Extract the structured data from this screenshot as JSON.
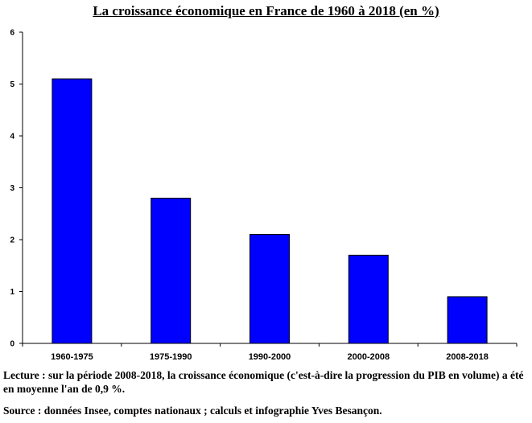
{
  "title": "La croissance économique en France de 1960 à 2018 (en %)",
  "chart_data": {
    "type": "bar",
    "title": "La croissance économique en France de 1960 à 2018 (en %)",
    "categories": [
      "1960-1975",
      "1975-1990",
      "1990-2000",
      "2000-2008",
      "2008-2018"
    ],
    "values": [
      5.1,
      2.8,
      2.1,
      1.7,
      0.9
    ],
    "ylim": [
      0,
      6
    ],
    "yticks": [
      0,
      1,
      2,
      3,
      4,
      5,
      6
    ],
    "bar_color": "#0000ff",
    "grid": false,
    "xlabel": "",
    "ylabel": ""
  },
  "notes": {
    "lecture": "Lecture : sur la période 2008-2018, la croissance économique (c'est-à-dire la progression du PIB en volume) a été en moyenne l'an de 0,9 %.",
    "source": "Source : données Insee, comptes nationaux ; calculs et infographie Yves Besançon."
  }
}
